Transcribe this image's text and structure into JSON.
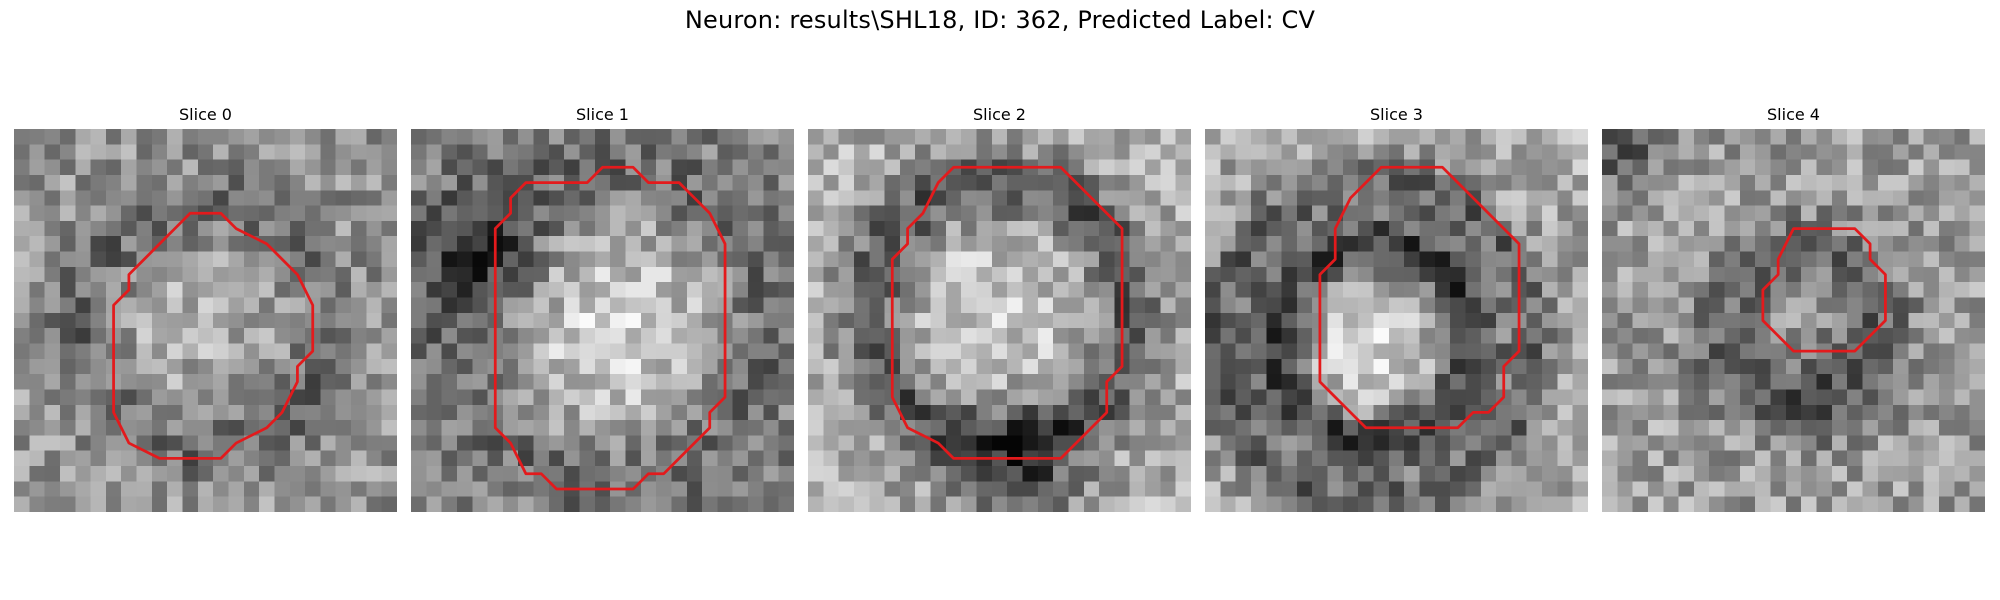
{
  "figure": {
    "title": "Neuron: results\\SHL18, ID: 362, Predicted Label: CV"
  },
  "panels": [
    {
      "title": "Slice 0",
      "pattern": "ring-weak",
      "seed": 11,
      "contour": [
        [
          11.5,
          5.5
        ],
        [
          13.5,
          5.5
        ],
        [
          14.5,
          6.5
        ],
        [
          16.5,
          7.5
        ],
        [
          17.5,
          8.5
        ],
        [
          18.5,
          9.5
        ],
        [
          19.5,
          11.5
        ],
        [
          19.5,
          14.5
        ],
        [
          18.5,
          15.5
        ],
        [
          18.5,
          16.5
        ],
        [
          17.5,
          18.5
        ],
        [
          16.5,
          19.5
        ],
        [
          14.5,
          20.5
        ],
        [
          13.5,
          21.5
        ],
        [
          9.5,
          21.5
        ],
        [
          7.5,
          20.5
        ],
        [
          6.5,
          18.5
        ],
        [
          6.5,
          15.5
        ],
        [
          6.5,
          11.5
        ],
        [
          7.5,
          10.5
        ],
        [
          7.5,
          9.5
        ],
        [
          8.5,
          8.5
        ],
        [
          9.5,
          7.5
        ],
        [
          10.5,
          6.5
        ]
      ]
    },
    {
      "title": "Slice 1",
      "pattern": "bright-core",
      "seed": 23,
      "contour": [
        [
          8.5,
          3.5
        ],
        [
          11.5,
          3.5
        ],
        [
          12.5,
          2.5
        ],
        [
          14.5,
          2.5
        ],
        [
          15.5,
          3.5
        ],
        [
          17.5,
          3.5
        ],
        [
          18.5,
          4.5
        ],
        [
          19.5,
          5.5
        ],
        [
          20.5,
          7.5
        ],
        [
          20.5,
          10.5
        ],
        [
          20.5,
          17.5
        ],
        [
          19.5,
          18.5
        ],
        [
          19.5,
          19.5
        ],
        [
          17.5,
          21.5
        ],
        [
          16.5,
          22.5
        ],
        [
          15.5,
          22.5
        ],
        [
          14.5,
          23.5
        ],
        [
          10.5,
          23.5
        ],
        [
          9.5,
          23.5
        ],
        [
          8.5,
          22.5
        ],
        [
          7.5,
          22.5
        ],
        [
          6.5,
          20.5
        ],
        [
          5.5,
          19.5
        ],
        [
          5.5,
          15.5
        ],
        [
          5.5,
          9.5
        ],
        [
          5.5,
          6.5
        ],
        [
          6.5,
          5.5
        ],
        [
          6.5,
          4.5
        ],
        [
          7.5,
          3.5
        ]
      ]
    },
    {
      "title": "Slice 2",
      "pattern": "ring-strong",
      "seed": 37,
      "contour": [
        [
          9.5,
          2.5
        ],
        [
          14.5,
          2.5
        ],
        [
          16.5,
          2.5
        ],
        [
          17.5,
          3.5
        ],
        [
          18.5,
          4.5
        ],
        [
          19.5,
          5.5
        ],
        [
          20.5,
          6.5
        ],
        [
          20.5,
          15.5
        ],
        [
          19.5,
          16.5
        ],
        [
          19.5,
          18.5
        ],
        [
          18.5,
          19.5
        ],
        [
          17.5,
          20.5
        ],
        [
          16.5,
          21.5
        ],
        [
          9.5,
          21.5
        ],
        [
          8.5,
          20.5
        ],
        [
          6.5,
          19.5
        ],
        [
          5.5,
          17.5
        ],
        [
          5.5,
          16.5
        ],
        [
          5.5,
          8.5
        ],
        [
          6.5,
          7.5
        ],
        [
          6.5,
          6.5
        ],
        [
          7.5,
          5.5
        ],
        [
          8.5,
          3.5
        ]
      ]
    },
    {
      "title": "Slice 3",
      "pattern": "double-ring",
      "seed": 51,
      "contour": [
        [
          10.5,
          3.5
        ],
        [
          11.5,
          2.5
        ],
        [
          15.5,
          2.5
        ],
        [
          16.5,
          3.5
        ],
        [
          17.5,
          4.5
        ],
        [
          18.5,
          5.5
        ],
        [
          19.5,
          6.5
        ],
        [
          20.5,
          7.5
        ],
        [
          20.5,
          14.5
        ],
        [
          19.5,
          15.5
        ],
        [
          19.5,
          17.5
        ],
        [
          18.5,
          18.5
        ],
        [
          17.5,
          18.5
        ],
        [
          16.5,
          19.5
        ],
        [
          11.5,
          19.5
        ],
        [
          10.5,
          19.5
        ],
        [
          9.5,
          18.5
        ],
        [
          8.5,
          17.5
        ],
        [
          7.5,
          16.5
        ],
        [
          7.5,
          12.5
        ],
        [
          7.5,
          9.5
        ],
        [
          8.5,
          8.5
        ],
        [
          8.5,
          6.5
        ],
        [
          9.5,
          4.5
        ]
      ]
    },
    {
      "title": "Slice 4",
      "pattern": "small-ring",
      "seed": 67,
      "contour": [
        [
          12.5,
          6.5
        ],
        [
          16.5,
          6.5
        ],
        [
          17.5,
          7.5
        ],
        [
          17.5,
          8.5
        ],
        [
          18.5,
          9.5
        ],
        [
          18.5,
          12.5
        ],
        [
          17.5,
          13.5
        ],
        [
          16.5,
          14.5
        ],
        [
          12.5,
          14.5
        ],
        [
          11.5,
          13.5
        ],
        [
          10.5,
          12.5
        ],
        [
          10.5,
          10.5
        ],
        [
          11.5,
          9.5
        ],
        [
          11.5,
          8.5
        ]
      ]
    }
  ],
  "colors": {
    "contour": "#e31a1c"
  }
}
